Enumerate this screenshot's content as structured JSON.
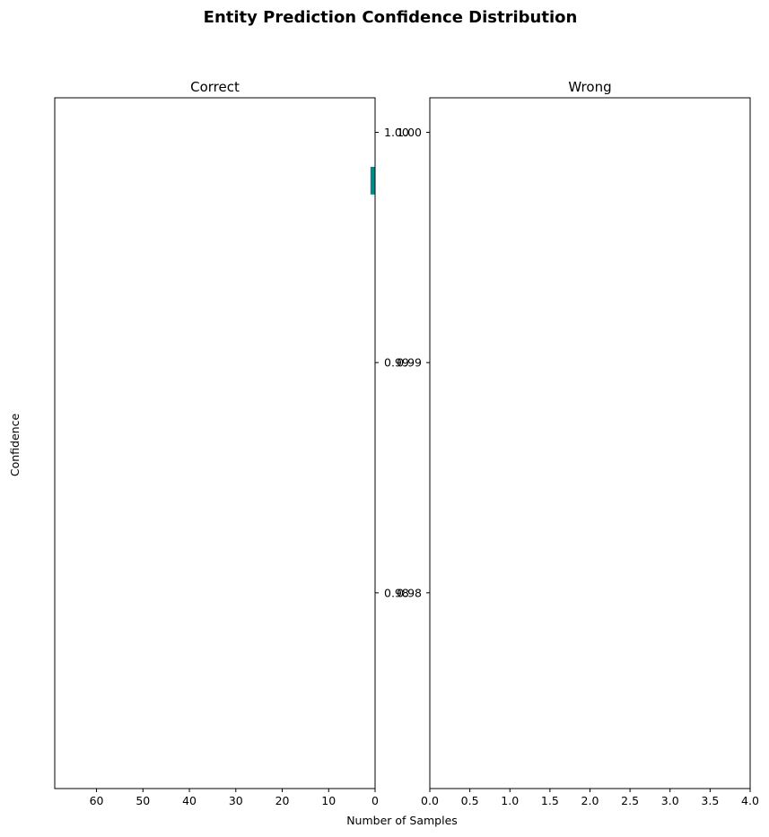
{
  "chart_data": {
    "type": "bar",
    "title": "Entity Prediction Confidence Distribution",
    "xlabel": "Number of Samples",
    "ylabel": "Confidence",
    "orientation": "horizontal",
    "ylim": [
      0.9715,
      1.0015
    ],
    "yticks": [
      0.98,
      0.99,
      1.0
    ],
    "ytick_labels": [
      "0.98",
      "0.99",
      "1.00"
    ],
    "bar_color": "#008b8b",
    "panels": [
      {
        "name": "correct",
        "title": "Correct",
        "xlim": [
          69,
          0
        ],
        "xticks": [
          60,
          50,
          40,
          30,
          20,
          10,
          0
        ],
        "xtick_labels": [
          "60",
          "50",
          "40",
          "30",
          "20",
          "10",
          "0"
        ],
        "bars": [
          {
            "y_low": 0.9973,
            "y_high": 0.9985,
            "count": 1
          }
        ]
      },
      {
        "name": "wrong",
        "title": "Wrong",
        "xlim": [
          0,
          4
        ],
        "xticks": [
          0,
          0.5,
          1,
          1.5,
          2,
          2.5,
          3,
          3.5,
          4
        ],
        "xtick_labels": [
          "0.0",
          "0.5",
          "1.0",
          "1.5",
          "2.0",
          "2.5",
          "3.0",
          "3.5",
          "4.0"
        ],
        "bars": []
      }
    ]
  }
}
